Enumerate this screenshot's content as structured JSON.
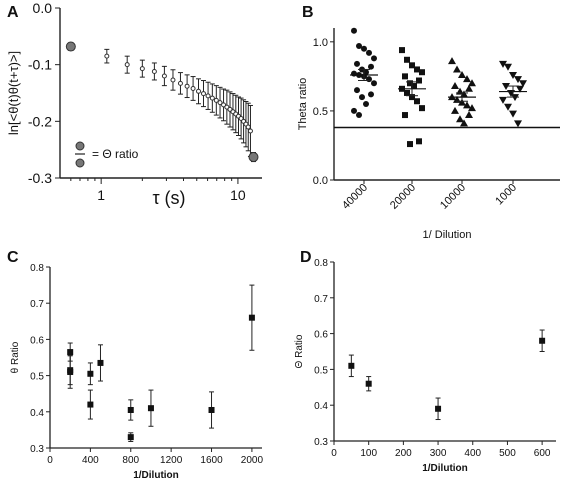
{
  "chart_data": [
    {
      "panel": "A",
      "type": "scatter",
      "xscale": "log",
      "xlim": [
        0.5,
        15
      ],
      "ylim": [
        -0.3,
        0
      ],
      "xticks": [
        "1",
        "10"
      ],
      "yticks": [
        "0.0",
        "-0.1",
        "-0.2",
        "-0.3"
      ],
      "xlabel": "τ (s)",
      "ylabel": "ln[<θ(t)θ(t+τ)>]",
      "legend_text": "= Θ ratio",
      "endpoints": [
        {
          "x": 0.6,
          "y": -0.068,
          "err": 0.007
        },
        {
          "x": 13,
          "y": -0.263,
          "err": 0.008
        }
      ],
      "points": [
        {
          "x": 1.1,
          "y": -0.085,
          "err": 0.012
        },
        {
          "x": 1.55,
          "y": -0.1,
          "err": 0.015
        },
        {
          "x": 2,
          "y": -0.107,
          "err": 0.015
        },
        {
          "x": 2.45,
          "y": -0.112,
          "err": 0.015
        },
        {
          "x": 2.9,
          "y": -0.12,
          "err": 0.017
        },
        {
          "x": 3.35,
          "y": -0.127,
          "err": 0.018
        },
        {
          "x": 3.8,
          "y": -0.133,
          "err": 0.019
        },
        {
          "x": 4.25,
          "y": -0.138,
          "err": 0.02
        },
        {
          "x": 4.7,
          "y": -0.142,
          "err": 0.021
        },
        {
          "x": 5.15,
          "y": -0.147,
          "err": 0.022
        },
        {
          "x": 5.6,
          "y": -0.151,
          "err": 0.023
        },
        {
          "x": 6.05,
          "y": -0.155,
          "err": 0.024
        },
        {
          "x": 6.5,
          "y": -0.159,
          "err": 0.025
        },
        {
          "x": 6.95,
          "y": -0.163,
          "err": 0.026
        },
        {
          "x": 7.4,
          "y": -0.167,
          "err": 0.027
        },
        {
          "x": 7.85,
          "y": -0.171,
          "err": 0.028
        },
        {
          "x": 8.3,
          "y": -0.175,
          "err": 0.03
        },
        {
          "x": 8.75,
          "y": -0.179,
          "err": 0.031
        },
        {
          "x": 9.2,
          "y": -0.183,
          "err": 0.032
        },
        {
          "x": 9.65,
          "y": -0.187,
          "err": 0.033
        },
        {
          "x": 10.1,
          "y": -0.191,
          "err": 0.034
        },
        {
          "x": 10.55,
          "y": -0.195,
          "err": 0.036
        },
        {
          "x": 11,
          "y": -0.2,
          "err": 0.038
        },
        {
          "x": 11.45,
          "y": -0.205,
          "err": 0.04
        },
        {
          "x": 11.9,
          "y": -0.21,
          "err": 0.042
        },
        {
          "x": 12.35,
          "y": -0.217,
          "err": 0.045
        }
      ]
    },
    {
      "panel": "B",
      "type": "scatter",
      "xlabel": "1/ Dilution",
      "ylabel": "Theta ratio",
      "categories": [
        "40000",
        "20000",
        "10000",
        "1000"
      ],
      "ylim": [
        0,
        1.1
      ],
      "yticks": [
        "0.0",
        "0.5",
        "1.0"
      ],
      "reference_line": 0.38,
      "series": [
        {
          "category": "40000",
          "marker": "circle",
          "mean": 0.76,
          "sem": 0.04,
          "values": [
            1.08,
            0.97,
            0.95,
            0.92,
            0.88,
            0.84,
            0.82,
            0.8,
            0.78,
            0.77,
            0.76,
            0.75,
            0.73,
            0.7,
            0.65,
            0.62,
            0.6,
            0.55,
            0.5,
            0.47
          ]
        },
        {
          "category": "20000",
          "marker": "square",
          "mean": 0.66,
          "sem": 0.05,
          "values": [
            0.94,
            0.87,
            0.83,
            0.8,
            0.78,
            0.75,
            0.72,
            0.7,
            0.68,
            0.66,
            0.63,
            0.6,
            0.57,
            0.52,
            0.47,
            0.28,
            0.26
          ]
        },
        {
          "category": "10000",
          "marker": "triangle-up",
          "mean": 0.6,
          "sem": 0.03,
          "values": [
            0.86,
            0.8,
            0.76,
            0.73,
            0.7,
            0.68,
            0.66,
            0.64,
            0.62,
            0.6,
            0.58,
            0.56,
            0.54,
            0.52,
            0.5,
            0.47,
            0.44,
            0.41
          ]
        },
        {
          "category": "1000",
          "marker": "triangle-down",
          "mean": 0.64,
          "sem": 0.04,
          "values": [
            0.84,
            0.82,
            0.76,
            0.73,
            0.7,
            0.68,
            0.66,
            0.63,
            0.6,
            0.58,
            0.53,
            0.48,
            0.41
          ]
        }
      ]
    },
    {
      "panel": "C",
      "type": "scatter",
      "xlabel": "1/Dilution",
      "ylabel": "θ Ratio",
      "xlim": [
        0,
        2100
      ],
      "ylim": [
        0.3,
        0.8
      ],
      "xticks": [
        0,
        400,
        800,
        1200,
        1600,
        2000
      ],
      "yticks": [
        "0.3",
        "0.4",
        "0.5",
        "0.6",
        "0.7",
        "0.8"
      ],
      "points": [
        {
          "x": 200,
          "y": 0.565,
          "err": 0.025
        },
        {
          "x": 200,
          "y": 0.515,
          "err": 0.04
        },
        {
          "x": 200,
          "y": 0.51,
          "err": 0.045
        },
        {
          "x": 400,
          "y": 0.505,
          "err": 0.03
        },
        {
          "x": 400,
          "y": 0.42,
          "err": 0.04
        },
        {
          "x": 500,
          "y": 0.535,
          "err": 0.05
        },
        {
          "x": 800,
          "y": 0.405,
          "err": 0.028
        },
        {
          "x": 800,
          "y": 0.33,
          "err": 0.012
        },
        {
          "x": 1000,
          "y": 0.41,
          "err": 0.05
        },
        {
          "x": 1600,
          "y": 0.405,
          "err": 0.05
        },
        {
          "x": 2000,
          "y": 0.66,
          "err": 0.09
        }
      ]
    },
    {
      "panel": "D",
      "type": "scatter",
      "xlabel": "1/Dilution",
      "ylabel": "Θ Ratio",
      "xlim": [
        0,
        640
      ],
      "ylim": [
        0.3,
        0.8
      ],
      "xticks": [
        0,
        100,
        200,
        300,
        400,
        500,
        600
      ],
      "yticks": [
        "0.3",
        "0.4",
        "0.5",
        "0.6",
        "0.7",
        "0.8"
      ],
      "points": [
        {
          "x": 50,
          "y": 0.51,
          "err": 0.03
        },
        {
          "x": 100,
          "y": 0.46,
          "err": 0.02
        },
        {
          "x": 300,
          "y": 0.39,
          "err": 0.03
        },
        {
          "x": 600,
          "y": 0.58,
          "err": 0.03
        }
      ]
    }
  ]
}
